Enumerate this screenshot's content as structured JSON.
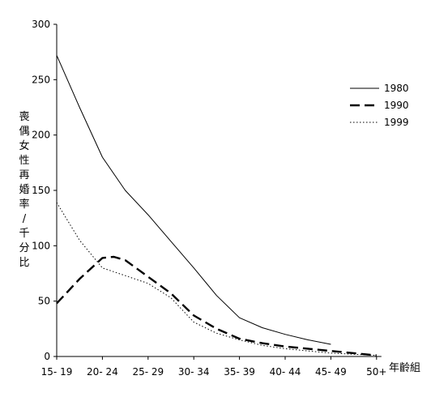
{
  "chart_data": {
    "type": "line",
    "categories": [
      "15- 19",
      "20- 24",
      "25- 29",
      "30- 34",
      "35- 39",
      "40- 44",
      "45- 49",
      "50+"
    ],
    "xlabel": "年齡組",
    "ylabel": "喪偶女性再婚率／千分比",
    "ylabel_chars": [
      "喪",
      "偶",
      "女",
      "性",
      "再",
      "婚",
      "率",
      "/",
      "千",
      "分",
      "比"
    ],
    "ylim": [
      0,
      300
    ],
    "yticks": [
      0,
      50,
      100,
      150,
      200,
      250,
      300
    ],
    "legend_position": "top-right",
    "grid": false,
    "series": [
      {
        "name": "1980",
        "style": "solid",
        "color": "#000000",
        "points": [
          [
            0,
            272
          ],
          [
            0.5,
            225
          ],
          [
            1,
            180
          ],
          [
            1.5,
            150
          ],
          [
            2,
            128
          ],
          [
            2.5,
            104
          ],
          [
            3,
            80
          ],
          [
            3.5,
            55
          ],
          [
            4,
            35
          ],
          [
            4.5,
            26
          ],
          [
            5,
            20
          ],
          [
            5.5,
            15
          ],
          [
            6,
            11
          ]
        ]
      },
      {
        "name": "1990",
        "style": "dashed",
        "color": "#000000",
        "points": [
          [
            0,
            48
          ],
          [
            0.5,
            70
          ],
          [
            1,
            89
          ],
          [
            1.25,
            90
          ],
          [
            1.5,
            87
          ],
          [
            2,
            72
          ],
          [
            2.5,
            57
          ],
          [
            3,
            37
          ],
          [
            3.5,
            25
          ],
          [
            4,
            16
          ],
          [
            4.5,
            12
          ],
          [
            5,
            9
          ],
          [
            6,
            5
          ],
          [
            7,
            1
          ]
        ]
      },
      {
        "name": "1999",
        "style": "dotted",
        "color": "#000000",
        "points": [
          [
            0,
            139
          ],
          [
            0.5,
            105
          ],
          [
            1,
            80
          ],
          [
            1.5,
            73
          ],
          [
            2,
            66
          ],
          [
            2.5,
            53
          ],
          [
            3,
            31
          ],
          [
            3.5,
            21
          ],
          [
            4,
            15
          ],
          [
            4.5,
            10
          ],
          [
            5,
            7
          ],
          [
            6,
            3
          ],
          [
            7,
            1
          ]
        ]
      }
    ]
  }
}
